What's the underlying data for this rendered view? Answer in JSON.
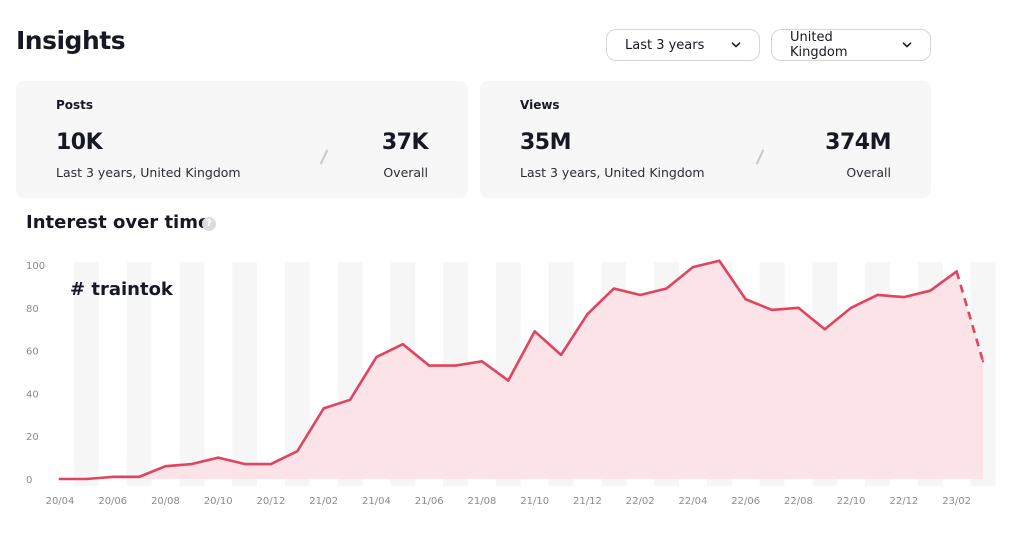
{
  "header": {
    "title": "Insights",
    "period_select": "Last 3 years",
    "region_select": "United Kingdom"
  },
  "cards": {
    "posts": {
      "title": "Posts",
      "period_value": "10K",
      "period_label": "Last 3 years, United Kingdom",
      "overall_value": "37K",
      "overall_label": "Overall"
    },
    "views": {
      "title": "Views",
      "period_value": "35M",
      "period_label": "Last 3 years, United Kingdom",
      "overall_value": "374M",
      "overall_label": "Overall"
    }
  },
  "section": {
    "title": "Interest over time",
    "help_icon": "question-mark"
  },
  "colors": {
    "line": "#e0445f",
    "area": "#fbe3e8",
    "grid_band": "#f6f6f7"
  },
  "chart_data": {
    "type": "area",
    "hashtag": "# traintok",
    "ylim": [
      0,
      100
    ],
    "yticks": [
      "0",
      "20",
      "40",
      "60",
      "80",
      "100"
    ],
    "x_tick_labels": [
      "20/04",
      "20/06",
      "20/08",
      "20/10",
      "20/12",
      "21/02",
      "21/04",
      "21/06",
      "21/08",
      "21/10",
      "21/12",
      "22/02",
      "22/04",
      "22/06",
      "22/08",
      "22/10",
      "22/12",
      "23/02"
    ],
    "x": [
      "20/04",
      "20/05",
      "20/06",
      "20/07",
      "20/08",
      "20/09",
      "20/10",
      "20/11",
      "20/12",
      "21/01",
      "21/02",
      "21/03",
      "21/04",
      "21/05",
      "21/06",
      "21/07",
      "21/08",
      "21/09",
      "21/10",
      "21/11",
      "21/12",
      "22/01",
      "22/02",
      "22/03",
      "22/04",
      "22/05",
      "22/06",
      "22/07",
      "22/08",
      "22/09",
      "22/10",
      "22/11",
      "22/12",
      "23/01",
      "23/02",
      "23/03"
    ],
    "values": [
      0,
      0,
      1,
      1,
      6,
      7,
      10,
      7,
      7,
      13,
      33,
      37,
      57,
      63,
      53,
      53,
      55,
      46,
      69,
      58,
      77,
      89,
      86,
      89,
      99,
      102,
      84,
      79,
      80,
      70,
      80,
      86,
      85,
      88,
      97,
      55
    ],
    "dashed_from_index": 34,
    "grid": true,
    "legend": "none"
  }
}
